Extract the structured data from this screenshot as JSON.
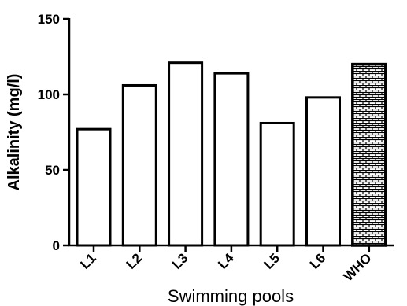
{
  "chart_data": {
    "type": "bar",
    "title": "",
    "xlabel": "Swimming pools",
    "ylabel": "Alkalinity (mg/l)",
    "categories": [
      "L1",
      "L2",
      "L3",
      "L4",
      "L5",
      "L6",
      "WHO"
    ],
    "values": [
      77,
      106,
      121,
      114,
      81,
      98,
      120
    ],
    "ylim": [
      0,
      150
    ],
    "yticks": [
      "0",
      "50",
      "100",
      "150"
    ],
    "grid": false,
    "legend": "none",
    "bar_fill": "#ffffff",
    "bar_stroke": "#000000",
    "highlight_category": "WHO",
    "highlight_pattern": "brick"
  }
}
